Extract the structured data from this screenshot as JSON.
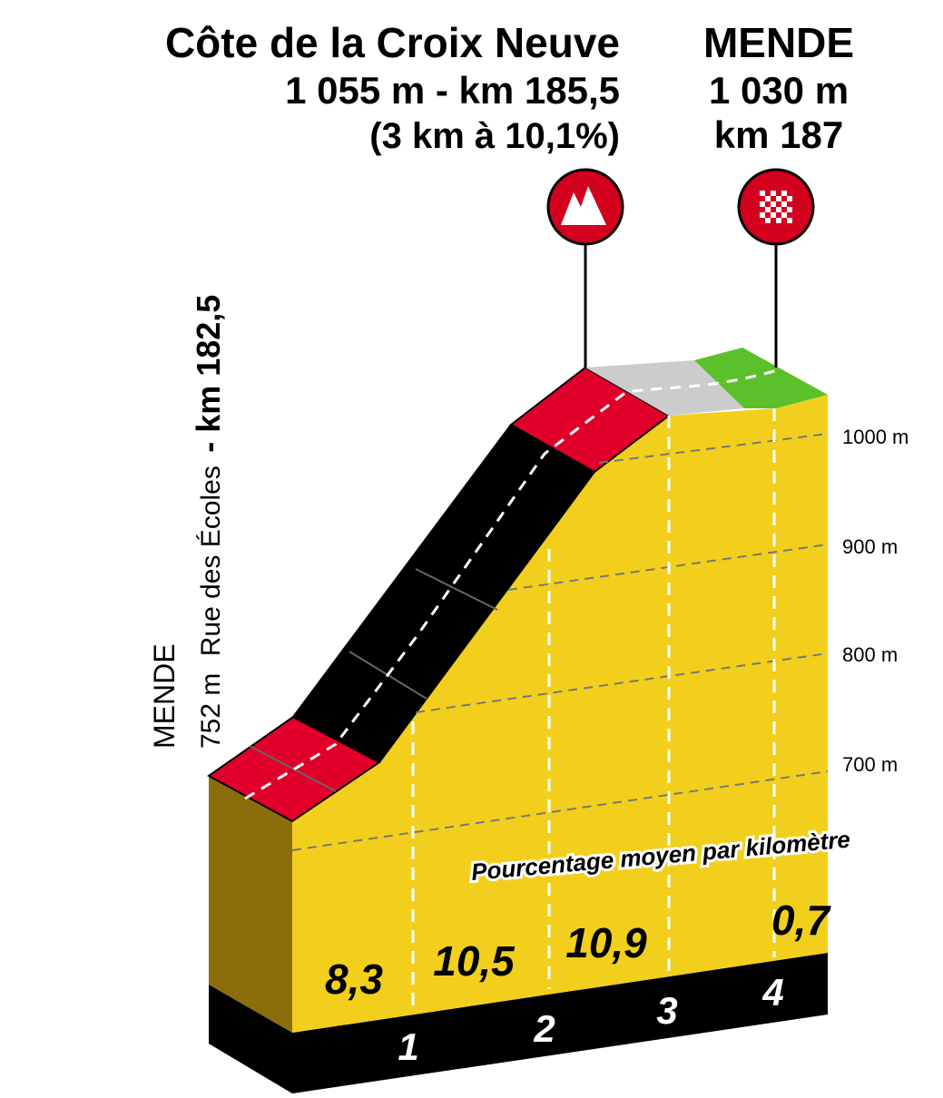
{
  "header": {
    "climb_name": "Côte de la Croix Neuve",
    "climb_altitude_km": "1 055 m - km 185,5",
    "climb_stats": "(3 km à 10,1%)",
    "finish_name": "MENDE",
    "finish_altitude": "1 030 m",
    "finish_km": "km 187"
  },
  "start": {
    "town": "MENDE",
    "altitude": "752 m",
    "street": "Rue des Écoles",
    "km": "- km 182,5"
  },
  "altitude_labels": [
    "1000 m",
    "900 m",
    "800 m",
    "700 m"
  ],
  "caption": "Pourcentage moyen par kilomètre",
  "gradients": [
    "8,3",
    "10,5",
    "10,9",
    "0,7"
  ],
  "km_markers": [
    "1",
    "2",
    "3",
    "4"
  ]
}
